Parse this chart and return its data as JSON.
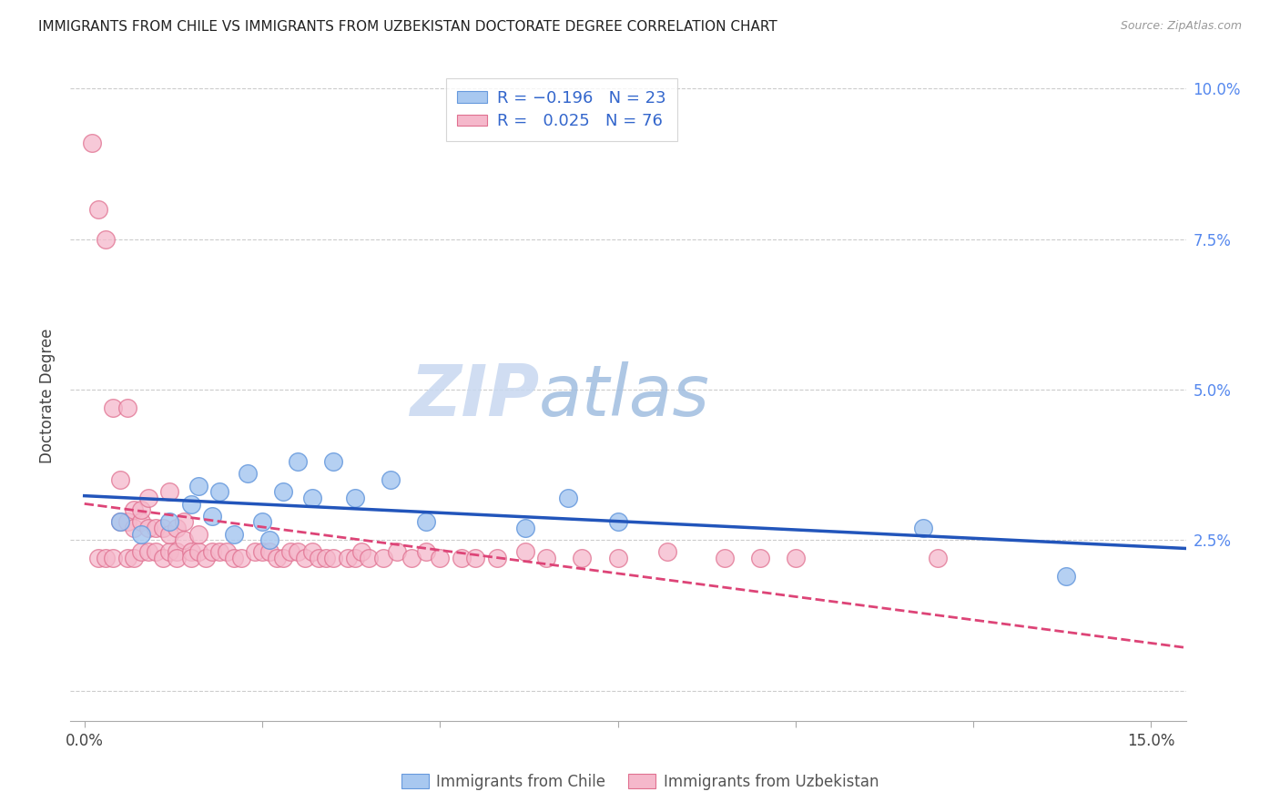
{
  "title": "IMMIGRANTS FROM CHILE VS IMMIGRANTS FROM UZBEKISTAN DOCTORATE DEGREE CORRELATION CHART",
  "source": "Source: ZipAtlas.com",
  "ylabel": "Doctorate Degree",
  "xlim": [
    -0.002,
    0.155
  ],
  "ylim": [
    -0.005,
    0.103
  ],
  "xticks": [
    0.0,
    0.025,
    0.05,
    0.075,
    0.1,
    0.125,
    0.15
  ],
  "xticklabels": [
    "0.0%",
    "",
    "",
    "",
    "",
    "",
    "15.0%"
  ],
  "yticks": [
    0.0,
    0.025,
    0.05,
    0.075,
    0.1
  ],
  "yticklabels_right": [
    "",
    "2.5%",
    "5.0%",
    "7.5%",
    "10.0%"
  ],
  "chile_fill": "#A8C8F0",
  "chile_edge": "#6699DD",
  "uzbekistan_fill": "#F5B8CB",
  "uzbekistan_edge": "#E07090",
  "line_chile_color": "#2255BB",
  "line_uzbekistan_color": "#DD4477",
  "legend_text_color": "#3366CC",
  "background_color": "#FFFFFF",
  "grid_color": "#CCCCCC",
  "watermark_zip": "ZIP",
  "watermark_atlas": "atlas",
  "chile_x": [
    0.005,
    0.008,
    0.012,
    0.015,
    0.016,
    0.018,
    0.019,
    0.021,
    0.023,
    0.025,
    0.026,
    0.028,
    0.03,
    0.032,
    0.035,
    0.038,
    0.043,
    0.048,
    0.062,
    0.068,
    0.075,
    0.118,
    0.138
  ],
  "chile_y": [
    0.028,
    0.026,
    0.028,
    0.031,
    0.034,
    0.029,
    0.033,
    0.026,
    0.036,
    0.028,
    0.025,
    0.033,
    0.038,
    0.032,
    0.038,
    0.032,
    0.035,
    0.028,
    0.027,
    0.032,
    0.028,
    0.027,
    0.019
  ],
  "uzbekistan_x": [
    0.001,
    0.002,
    0.002,
    0.003,
    0.003,
    0.004,
    0.004,
    0.005,
    0.005,
    0.006,
    0.006,
    0.006,
    0.007,
    0.007,
    0.007,
    0.008,
    0.008,
    0.008,
    0.009,
    0.009,
    0.009,
    0.01,
    0.01,
    0.011,
    0.011,
    0.012,
    0.012,
    0.012,
    0.013,
    0.013,
    0.013,
    0.014,
    0.014,
    0.015,
    0.015,
    0.016,
    0.016,
    0.017,
    0.018,
    0.019,
    0.02,
    0.021,
    0.022,
    0.024,
    0.025,
    0.026,
    0.027,
    0.028,
    0.029,
    0.03,
    0.031,
    0.032,
    0.033,
    0.034,
    0.035,
    0.037,
    0.038,
    0.039,
    0.04,
    0.042,
    0.044,
    0.046,
    0.048,
    0.05,
    0.053,
    0.055,
    0.058,
    0.062,
    0.065,
    0.07,
    0.075,
    0.082,
    0.09,
    0.095,
    0.1,
    0.12
  ],
  "uzbekistan_y": [
    0.091,
    0.08,
    0.022,
    0.075,
    0.022,
    0.047,
    0.022,
    0.035,
    0.028,
    0.047,
    0.022,
    0.028,
    0.022,
    0.027,
    0.03,
    0.028,
    0.023,
    0.03,
    0.023,
    0.027,
    0.032,
    0.023,
    0.027,
    0.022,
    0.027,
    0.023,
    0.026,
    0.033,
    0.023,
    0.027,
    0.022,
    0.025,
    0.028,
    0.023,
    0.022,
    0.023,
    0.026,
    0.022,
    0.023,
    0.023,
    0.023,
    0.022,
    0.022,
    0.023,
    0.023,
    0.023,
    0.022,
    0.022,
    0.023,
    0.023,
    0.022,
    0.023,
    0.022,
    0.022,
    0.022,
    0.022,
    0.022,
    0.023,
    0.022,
    0.022,
    0.023,
    0.022,
    0.023,
    0.022,
    0.022,
    0.022,
    0.022,
    0.023,
    0.022,
    0.022,
    0.022,
    0.023,
    0.022,
    0.022,
    0.022,
    0.022
  ]
}
